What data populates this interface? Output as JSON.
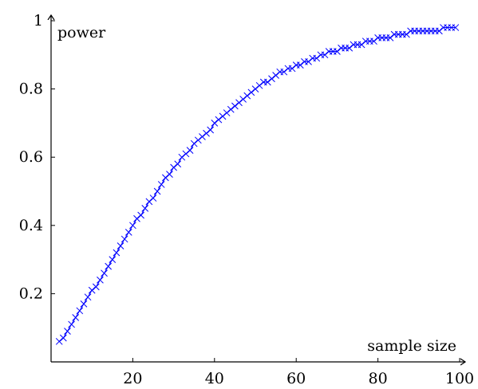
{
  "chart_data": {
    "type": "line",
    "xlabel": "sample size",
    "ylabel": "power",
    "xlim": [
      0,
      100
    ],
    "ylim": [
      0,
      1
    ],
    "grid": false,
    "marker": "x",
    "xticks": [
      20,
      40,
      60,
      80,
      100
    ],
    "yticks": [
      0.2,
      0.4,
      0.6,
      0.8,
      1
    ],
    "ytick_labels": [
      "0.2",
      "0.4",
      "0.6",
      "0.8",
      "1"
    ],
    "series": [
      {
        "color": "#0000ff",
        "x": [
          2,
          3,
          4,
          5,
          6,
          7,
          8,
          9,
          10,
          11,
          12,
          13,
          14,
          15,
          16,
          17,
          18,
          19,
          20,
          21,
          22,
          23,
          24,
          25,
          26,
          27,
          28,
          29,
          30,
          31,
          32,
          33,
          34,
          35,
          36,
          37,
          38,
          39,
          40,
          41,
          42,
          43,
          44,
          45,
          46,
          47,
          48,
          49,
          50,
          51,
          52,
          53,
          54,
          55,
          56,
          57,
          58,
          59,
          60,
          61,
          62,
          63,
          64,
          65,
          66,
          67,
          68,
          69,
          70,
          71,
          72,
          73,
          74,
          75,
          76,
          77,
          78,
          79,
          80,
          81,
          82,
          83,
          84,
          85,
          86,
          87,
          88,
          89,
          90,
          91,
          92,
          93,
          94,
          95,
          96,
          97,
          98,
          99
        ],
        "y": [
          0.06,
          0.07,
          0.09,
          0.11,
          0.13,
          0.15,
          0.17,
          0.19,
          0.21,
          0.22,
          0.24,
          0.26,
          0.28,
          0.3,
          0.32,
          0.34,
          0.36,
          0.38,
          0.4,
          0.42,
          0.43,
          0.45,
          0.47,
          0.48,
          0.5,
          0.52,
          0.54,
          0.55,
          0.57,
          0.58,
          0.6,
          0.61,
          0.62,
          0.64,
          0.65,
          0.66,
          0.67,
          0.68,
          0.7,
          0.71,
          0.72,
          0.73,
          0.74,
          0.75,
          0.76,
          0.77,
          0.78,
          0.79,
          0.8,
          0.81,
          0.82,
          0.82,
          0.83,
          0.84,
          0.85,
          0.85,
          0.86,
          0.86,
          0.87,
          0.87,
          0.88,
          0.88,
          0.89,
          0.89,
          0.9,
          0.9,
          0.91,
          0.91,
          0.91,
          0.92,
          0.92,
          0.92,
          0.93,
          0.93,
          0.93,
          0.94,
          0.94,
          0.94,
          0.95,
          0.95,
          0.95,
          0.95,
          0.96,
          0.96,
          0.96,
          0.96,
          0.97,
          0.97,
          0.97,
          0.97,
          0.97,
          0.97,
          0.97,
          0.97,
          0.98,
          0.98,
          0.98,
          0.98
        ]
      }
    ]
  }
}
